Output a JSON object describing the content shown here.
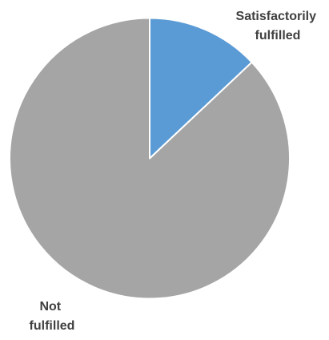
{
  "chart_data": {
    "type": "pie",
    "title": "",
    "start_angle_deg": 0,
    "direction": "clockwise",
    "slices": [
      {
        "label_lines": [
          "Satisfactorily",
          "fulfilled"
        ],
        "value": 13,
        "color": "#5B9BD5"
      },
      {
        "label_lines": [
          "Not",
          "fulfilled"
        ],
        "value": 87,
        "color": "#A5A5A5"
      }
    ],
    "legend": "none",
    "slice_border_color": "#ffffff"
  }
}
